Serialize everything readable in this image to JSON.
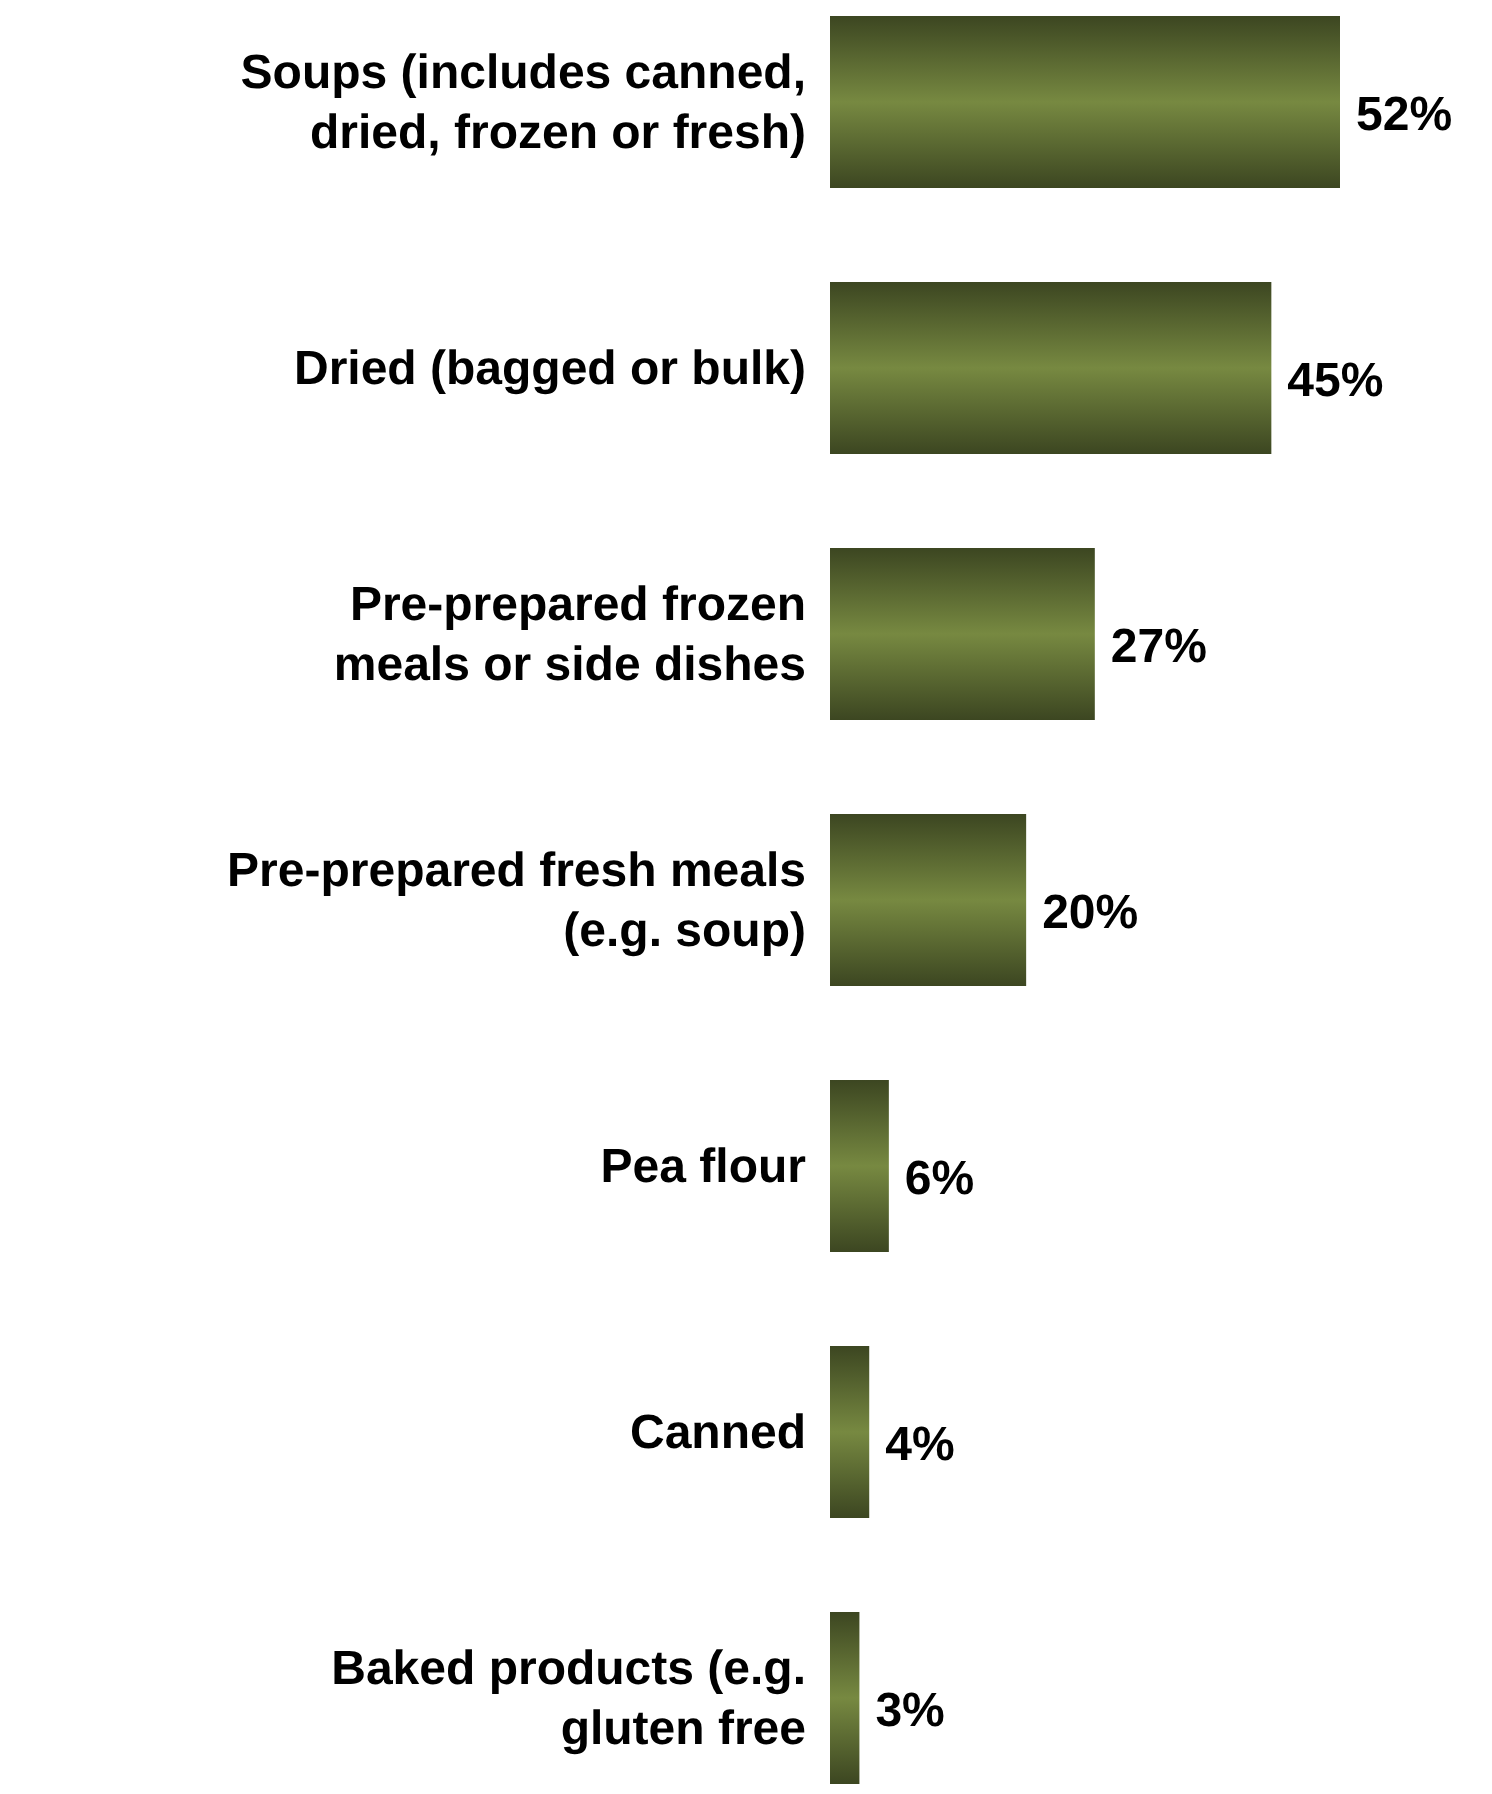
{
  "chart_data": {
    "type": "bar",
    "orientation": "horizontal",
    "data_labels": true,
    "categories": [
      "Soups (includes canned, dried, frozen or fresh)",
      "Dried (bagged or bulk)",
      "Pre-prepared frozen meals or side dishes",
      "Pre-prepared fresh meals (e.g. soup)",
      "Pea flour",
      "Canned",
      "Baked products (e.g. gluten free"
    ],
    "values": [
      52,
      45,
      27,
      20,
      6,
      4,
      3
    ],
    "value_labels": [
      "52%",
      "45%",
      "27%",
      "20%",
      "6%",
      "4%",
      "3%"
    ],
    "color": "#6b7b3a"
  }
}
